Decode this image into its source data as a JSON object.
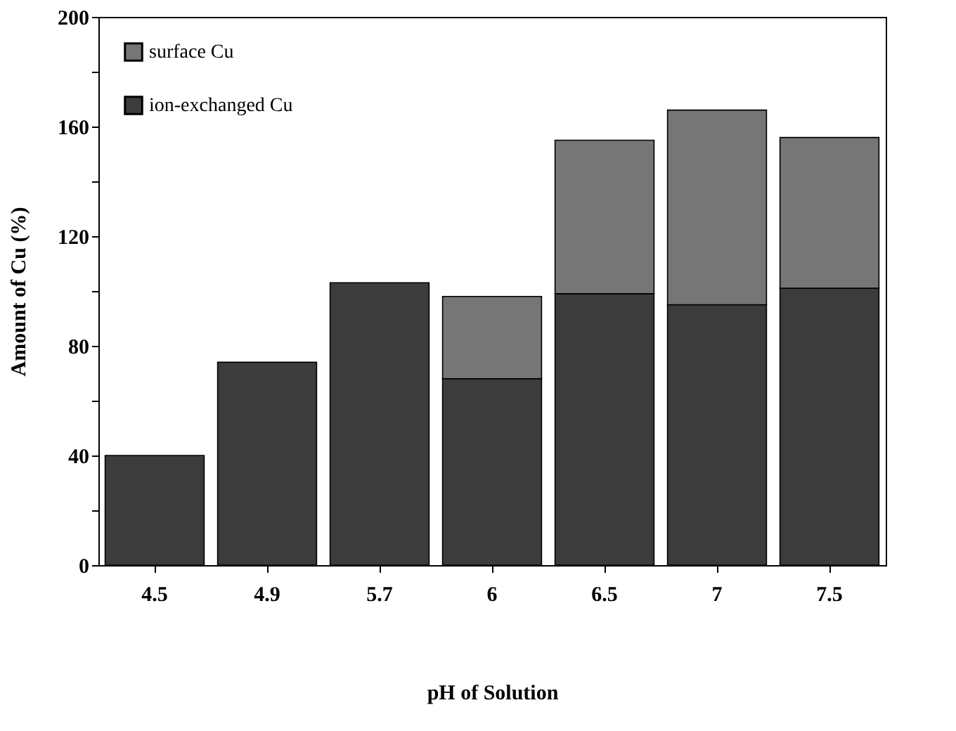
{
  "chart_data": {
    "type": "bar",
    "stacked": true,
    "xlabel": "pH of Solution",
    "ylabel": "Amount of Cu (%)",
    "categories": [
      "4.5",
      "4.9",
      "5.7",
      "6",
      "6.5",
      "7",
      "7.5"
    ],
    "series": [
      {
        "name": "ion-exchanged Cu",
        "color": "#3c3c3c",
        "values": [
          40,
          74,
          103,
          68,
          99,
          95,
          101
        ]
      },
      {
        "name": "surface Cu",
        "color": "#767676",
        "values": [
          null,
          null,
          null,
          30,
          56,
          71,
          55
        ]
      }
    ],
    "ylim": [
      0,
      200
    ],
    "yticks": [
      0,
      {
        "value": 20,
        "label": null
      },
      40,
      {
        "value": 60,
        "label": null
      },
      80,
      {
        "value": 100,
        "label": null
      },
      120,
      {
        "value": 140,
        "label": null
      },
      160,
      {
        "value": 180,
        "label": null
      },
      200
    ],
    "legend": "top left",
    "grid": false
  }
}
